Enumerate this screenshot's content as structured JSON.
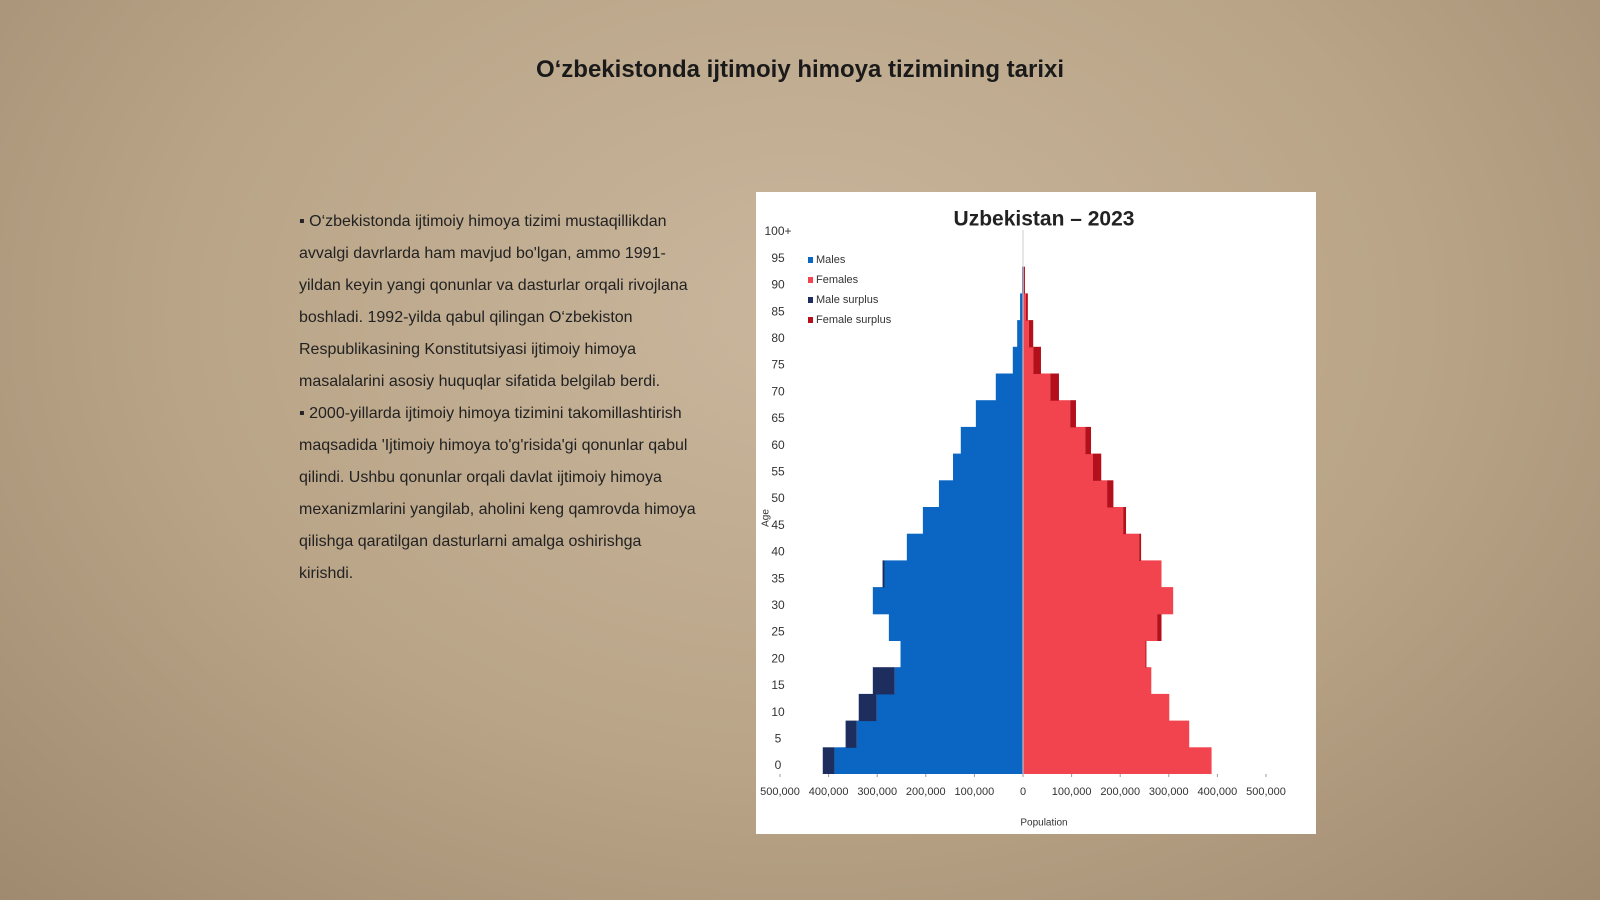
{
  "slide": {
    "title": "O‘zbekistonda ijtimoiy himoya tizimining tarixi",
    "bullets": [
      "▪ O‘zbekistonda ijtimoiy himoya tizimi mustaqillikdan avvalgi davrlarda ham mavjud bo'lgan, ammo 1991-yildan keyin yangi qonunlar va dasturlar orqali rivojlana boshladi. 1992-yilda qabul qilingan O‘zbekiston Respublikasining Konstitutsiyasi ijtimoiy himoya masalalarini asosiy huquqlar sifatida belgilab berdi.",
      "▪ 2000-yillarda ijtimoiy himoya tizimini takomillashtirish maqsadida 'Ijtimoiy himoya to'g'risida'gi qonunlar qabul qilindi. Ushbu qonunlar orqali davlat ijtimoiy himoya mexanizmlarini yangilab, aholini keng qamrovda himoya qilishga qaratilgan dasturlarni amalga oshirishga kirishdi."
    ]
  },
  "chart_data": {
    "type": "pyramid",
    "title": "Uzbekistan – 2023",
    "x_label": "Population",
    "y_label": "Age",
    "categories": [
      "0",
      "5",
      "10",
      "15",
      "20",
      "25",
      "30",
      "35",
      "40",
      "45",
      "50",
      "55",
      "60",
      "65",
      "70",
      "75",
      "80",
      "85",
      "90",
      "95",
      "100+"
    ],
    "series": [
      {
        "name": "Males",
        "color": "#0b66c3",
        "side": "left",
        "values": [
          388000,
          342000,
          301000,
          264000,
          252000,
          276000,
          309000,
          285000,
          239000,
          206000,
          173000,
          144000,
          128000,
          97000,
          56000,
          21000,
          12000,
          6000,
          2000,
          1000,
          0
        ]
      },
      {
        "name": "Females",
        "color": "#f2444e",
        "side": "right",
        "values": [
          388000,
          342000,
          301000,
          264000,
          252000,
          276000,
          309000,
          285000,
          239000,
          206000,
          173000,
          144000,
          128000,
          97000,
          56000,
          21000,
          12000,
          6000,
          2000,
          1000,
          0
        ]
      },
      {
        "name": "Male surplus",
        "color": "#1c2d5e",
        "side": "left",
        "values": [
          24000,
          23000,
          37000,
          45000,
          0,
          0,
          0,
          4000,
          0,
          0,
          0,
          0,
          0,
          0,
          0,
          0,
          0,
          0,
          0,
          0,
          0
        ]
      },
      {
        "name": "Female surplus",
        "color": "#b3101c",
        "side": "right",
        "values": [
          0,
          0,
          0,
          0,
          2000,
          9000,
          0,
          0,
          4000,
          6000,
          13000,
          17000,
          12000,
          12000,
          18000,
          16000,
          9000,
          4000,
          2000,
          0,
          0
        ]
      }
    ],
    "xlim": [
      -500000,
      500000
    ],
    "xticks": [
      {
        "value": -500000,
        "label": "500,000"
      },
      {
        "value": -400000,
        "label": "400,000"
      },
      {
        "value": -300000,
        "label": "300,000"
      },
      {
        "value": -200000,
        "label": "200,000"
      },
      {
        "value": -100000,
        "label": "100,000"
      },
      0,
      {
        "value": 100000,
        "label": "100,000"
      },
      {
        "value": 200000,
        "label": "200,000"
      },
      {
        "value": 300000,
        "label": "300,000"
      },
      {
        "value": 400000,
        "label": "400,000"
      },
      {
        "value": 500000,
        "label": "500,000"
      }
    ],
    "legend": "top-left"
  }
}
